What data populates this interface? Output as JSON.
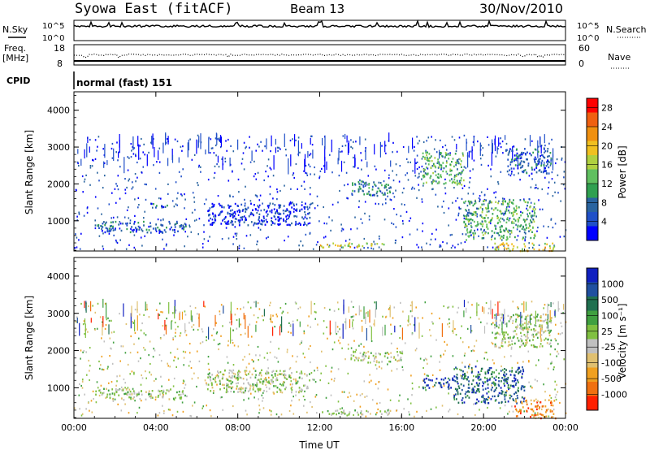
{
  "header": {
    "title": "Syowa East (fitACF)",
    "beam": "Beam 13",
    "date": "30/Nov/2010"
  },
  "noise_panel": {
    "left_label": "N.Sky",
    "right_label": "N.Search",
    "y_top": "10^5",
    "y_bottom": "10^0"
  },
  "freq_panel": {
    "left_label_1": "Freq.",
    "left_label_2": "[MHz]",
    "right_label": "Nave",
    "left_ticks": [
      "18",
      "8"
    ],
    "right_ticks": [
      "60",
      "0"
    ],
    "freq_range_mhz": [
      8,
      18
    ],
    "nave_range": [
      0,
      60
    ]
  },
  "cpid": {
    "label": "CPID",
    "mode": "normal (fast) 151"
  },
  "colors": {
    "power_scale": [
      "#0000ff",
      "#2050c8",
      "#2a64a0",
      "#30a050",
      "#60c060",
      "#b0d040",
      "#f0c020",
      "#f09010",
      "#f06010",
      "#ff0000"
    ],
    "velocity_scale": [
      "#1020c0",
      "#2050a0",
      "#207050",
      "#40a040",
      "#80c040",
      "#c0c0c0",
      "#e0c070",
      "#f0a020",
      "#f07010",
      "#ff2000"
    ]
  },
  "chart_data": [
    {
      "type": "heatmap",
      "name": "power-panel",
      "ylabel": "Slant Range [km]",
      "xlabel": "",
      "x_ticks": [
        "00:00",
        "04:00",
        "08:00",
        "12:00",
        "16:00",
        "20:00",
        "00:00"
      ],
      "xlim_hours": [
        0,
        24
      ],
      "ylim_km": [
        180,
        4500
      ],
      "y_ticks": [
        "1000",
        "2000",
        "3000",
        "4000"
      ],
      "colorbar_label": "Power [dB]",
      "colorbar_ticks": [
        "4",
        "8",
        "12",
        "16",
        "20",
        "24",
        "28"
      ],
      "colorbar_range": [
        0,
        30
      ],
      "echo_regions": [
        {
          "t0": 1.0,
          "t1": 5.5,
          "r0": 700,
          "r1": 1000,
          "level": 2
        },
        {
          "t0": 3.6,
          "t1": 4.6,
          "r0": 1350,
          "r1": 1500,
          "level": 2
        },
        {
          "t0": 6.5,
          "t1": 11.5,
          "r0": 900,
          "r1": 1500,
          "level": 1
        },
        {
          "t0": 12.0,
          "t1": 15.5,
          "r0": 300,
          "r1": 420,
          "level": 6
        },
        {
          "t0": 13.5,
          "t1": 15.5,
          "r0": 1700,
          "r1": 2100,
          "level": 3
        },
        {
          "t0": 17.0,
          "t1": 19.0,
          "r0": 2000,
          "r1": 2900,
          "level": 4
        },
        {
          "t0": 19.0,
          "t1": 22.5,
          "r0": 500,
          "r1": 1600,
          "level": 4
        },
        {
          "t0": 20.5,
          "t1": 23.5,
          "r0": 200,
          "r1": 420,
          "level": 6
        },
        {
          "t0": 21.0,
          "t1": 23.3,
          "r0": 2300,
          "r1": 3000,
          "level": 2
        }
      ]
    },
    {
      "type": "heatmap",
      "name": "velocity-panel",
      "ylabel": "Slant Range [km]",
      "xlabel": "Time UT",
      "x_ticks": [
        "00:00",
        "04:00",
        "08:00",
        "12:00",
        "16:00",
        "20:00",
        "00:00"
      ],
      "xlim_hours": [
        0,
        24
      ],
      "ylim_km": [
        180,
        4500
      ],
      "y_ticks": [
        "1000",
        "2000",
        "3000",
        "4000"
      ],
      "colorbar_label": "Velocity [m s⁻¹]",
      "colorbar_ticks": [
        "1000",
        "500",
        "100",
        "25",
        "-25",
        "-100",
        "-500",
        "-1000"
      ],
      "echo_regions": [
        {
          "t0": 1.0,
          "t1": 5.5,
          "r0": 700,
          "r1": 1000,
          "level": 5
        },
        {
          "t0": 6.5,
          "t1": 11.5,
          "r0": 900,
          "r1": 1500,
          "level": 5
        },
        {
          "t0": 12.0,
          "t1": 15.5,
          "r0": 300,
          "r1": 420,
          "level": 5
        },
        {
          "t0": 13.5,
          "t1": 16.0,
          "r0": 1700,
          "r1": 2000,
          "level": 5
        },
        {
          "t0": 17.0,
          "t1": 18.5,
          "r0": 1000,
          "r1": 1300,
          "level": 1
        },
        {
          "t0": 18.5,
          "t1": 22.0,
          "r0": 600,
          "r1": 1600,
          "level": 2
        },
        {
          "t0": 21.5,
          "t1": 23.5,
          "r0": 200,
          "r1": 700,
          "level": 8
        },
        {
          "t0": 20.5,
          "t1": 23.3,
          "r0": 2100,
          "r1": 3000,
          "level": 5
        }
      ]
    }
  ]
}
